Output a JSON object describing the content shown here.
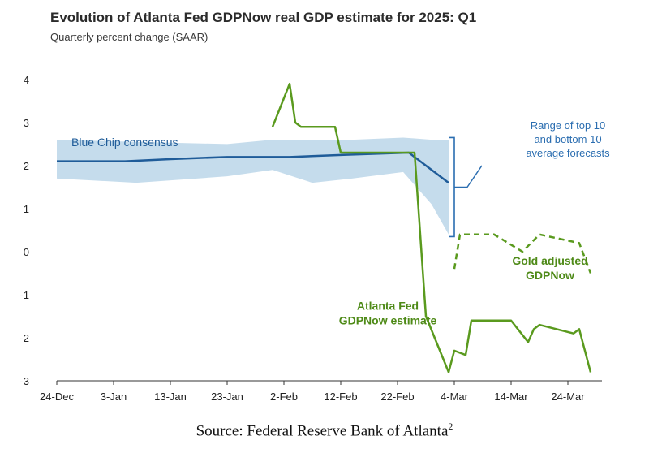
{
  "chart_data": {
    "type": "line",
    "title": "Evolution of Atlanta Fed GDPNow real GDP estimate for 2025: Q1",
    "subtitle": "Quarterly percent change (SAAR)",
    "xlabel": "",
    "ylabel": "",
    "x_ticks": [
      "24-Dec",
      "3-Jan",
      "13-Jan",
      "23-Jan",
      "2-Feb",
      "12-Feb",
      "22-Feb",
      "4-Mar",
      "14-Mar",
      "24-Mar"
    ],
    "y_ticks": [
      "-3",
      "-2",
      "-1",
      "0",
      "1",
      "2",
      "3",
      "4"
    ],
    "xlim": [
      "2024-12-24",
      "2025-03-30"
    ],
    "ylim": [
      -3,
      4.3
    ],
    "grid": false,
    "legend": "inline labels",
    "colors": {
      "blue_chip": "#1f5c99",
      "range_band": "#c5dcec",
      "gdpnow": "#5a9a1e",
      "annotation_text": "#2a6db0",
      "gdpnow_label": "#4e8a17"
    },
    "range_band": {
      "name": "Range of top 10 and bottom 10 average forecasts",
      "x": [
        "2024-12-24",
        "2025-01-07",
        "2025-01-23",
        "2025-01-31",
        "2025-02-07",
        "2025-02-14",
        "2025-02-23",
        "2025-02-28",
        "2025-03-03"
      ],
      "upper": [
        2.6,
        2.55,
        2.5,
        2.6,
        2.6,
        2.6,
        2.65,
        2.6,
        2.6
      ],
      "lower": [
        1.7,
        1.6,
        1.75,
        1.9,
        1.6,
        1.7,
        1.85,
        1.1,
        0.4
      ]
    },
    "series": [
      {
        "name": "Blue Chip consensus",
        "style": "solid",
        "x": [
          "2024-12-24",
          "2025-01-05",
          "2025-01-13",
          "2025-01-23",
          "2025-02-03",
          "2025-02-13",
          "2025-02-24",
          "2025-03-03"
        ],
        "values": [
          2.1,
          2.1,
          2.15,
          2.2,
          2.2,
          2.25,
          2.3,
          1.6
        ]
      },
      {
        "name": "Atlanta Fed GDPNow estimate",
        "style": "solid",
        "x": [
          "2025-01-31",
          "2025-02-03",
          "2025-02-04",
          "2025-02-05",
          "2025-02-11",
          "2025-02-12",
          "2025-02-24",
          "2025-02-25",
          "2025-02-27",
          "2025-03-03",
          "2025-03-04",
          "2025-03-06",
          "2025-03-07",
          "2025-03-08",
          "2025-03-14",
          "2025-03-17",
          "2025-03-18",
          "2025-03-19",
          "2025-03-25",
          "2025-03-26",
          "2025-03-28"
        ],
        "values": [
          2.9,
          3.9,
          3.0,
          2.9,
          2.9,
          2.3,
          2.3,
          2.3,
          -1.5,
          -2.8,
          -2.3,
          -2.4,
          -1.6,
          -1.6,
          -1.6,
          -2.1,
          -1.8,
          -1.7,
          -1.9,
          -1.8,
          -2.8
        ]
      },
      {
        "name": "Gold adjusted GDPNow",
        "style": "dashed",
        "x": [
          "2025-03-04",
          "2025-03-05",
          "2025-03-07",
          "2025-03-11",
          "2025-03-16",
          "2025-03-19",
          "2025-03-26",
          "2025-03-28"
        ],
        "values": [
          -0.4,
          0.4,
          0.4,
          0.4,
          0.0,
          0.4,
          0.2,
          -0.5
        ]
      }
    ],
    "annotations": {
      "blue_chip_label": "Blue Chip consensus",
      "range_label": [
        "Range of top 10",
        "and bottom 10",
        "average forecasts"
      ],
      "gold_label": [
        "Gold adjusted",
        "GDPNow"
      ],
      "gdpnow_label": [
        "Atlanta Fed",
        "GDPNow estimate"
      ]
    }
  },
  "source": {
    "text": "Source: Federal Reserve Bank of Atlanta",
    "superscript": "2"
  }
}
